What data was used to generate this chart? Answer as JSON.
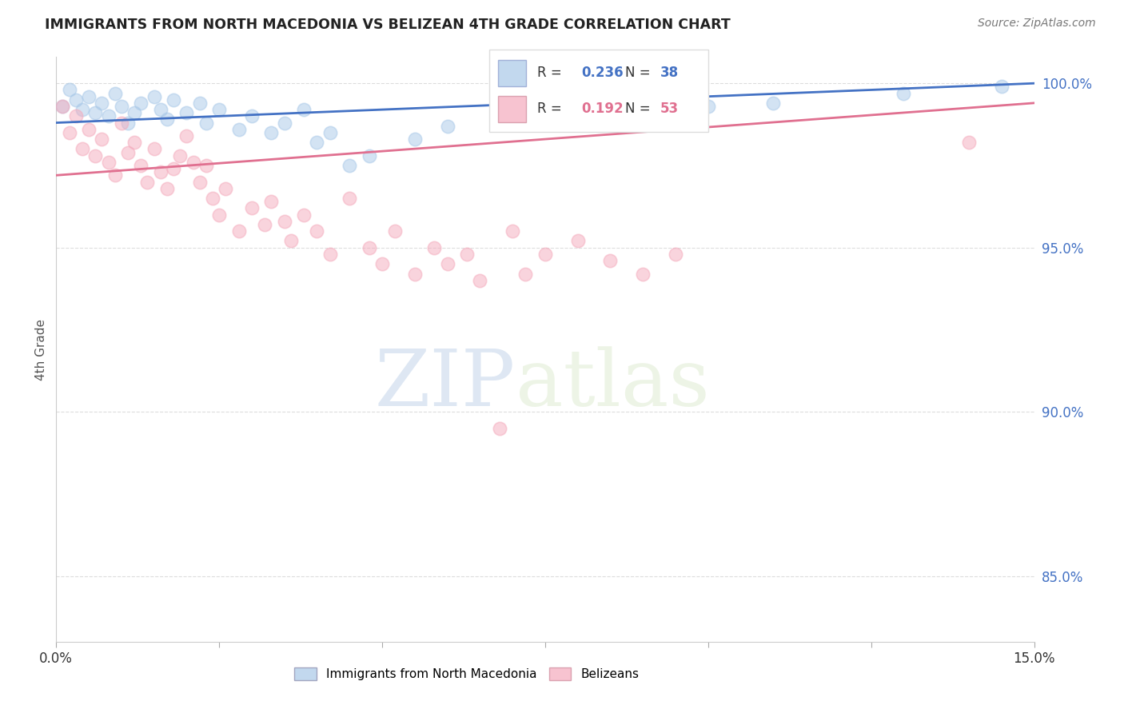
{
  "title": "IMMIGRANTS FROM NORTH MACEDONIA VS BELIZEAN 4TH GRADE CORRELATION CHART",
  "source": "Source: ZipAtlas.com",
  "ylabel": "4th Grade",
  "xlim": [
    0.0,
    0.15
  ],
  "ylim": [
    0.83,
    1.008
  ],
  "yticks": [
    0.85,
    0.9,
    0.95,
    1.0
  ],
  "yticklabels": [
    "85.0%",
    "90.0%",
    "95.0%",
    "100.0%"
  ],
  "blue_color": "#A8C8E8",
  "pink_color": "#F4AABC",
  "blue_line_color": "#4472C4",
  "pink_line_color": "#E07090",
  "r_blue": 0.236,
  "n_blue": 38,
  "r_pink": 0.192,
  "n_pink": 53,
  "blue_dots": [
    [
      0.001,
      0.993
    ],
    [
      0.002,
      0.998
    ],
    [
      0.003,
      0.995
    ],
    [
      0.004,
      0.992
    ],
    [
      0.005,
      0.996
    ],
    [
      0.006,
      0.991
    ],
    [
      0.007,
      0.994
    ],
    [
      0.008,
      0.99
    ],
    [
      0.009,
      0.997
    ],
    [
      0.01,
      0.993
    ],
    [
      0.011,
      0.988
    ],
    [
      0.012,
      0.991
    ],
    [
      0.013,
      0.994
    ],
    [
      0.015,
      0.996
    ],
    [
      0.016,
      0.992
    ],
    [
      0.017,
      0.989
    ],
    [
      0.018,
      0.995
    ],
    [
      0.02,
      0.991
    ],
    [
      0.022,
      0.994
    ],
    [
      0.023,
      0.988
    ],
    [
      0.025,
      0.992
    ],
    [
      0.028,
      0.986
    ],
    [
      0.03,
      0.99
    ],
    [
      0.033,
      0.985
    ],
    [
      0.035,
      0.988
    ],
    [
      0.038,
      0.992
    ],
    [
      0.04,
      0.982
    ],
    [
      0.042,
      0.985
    ],
    [
      0.045,
      0.975
    ],
    [
      0.048,
      0.978
    ],
    [
      0.055,
      0.983
    ],
    [
      0.06,
      0.987
    ],
    [
      0.07,
      0.992
    ],
    [
      0.085,
      0.99
    ],
    [
      0.1,
      0.993
    ],
    [
      0.11,
      0.994
    ],
    [
      0.13,
      0.997
    ],
    [
      0.145,
      0.999
    ]
  ],
  "pink_dots": [
    [
      0.001,
      0.993
    ],
    [
      0.002,
      0.985
    ],
    [
      0.003,
      0.99
    ],
    [
      0.004,
      0.98
    ],
    [
      0.005,
      0.986
    ],
    [
      0.006,
      0.978
    ],
    [
      0.007,
      0.983
    ],
    [
      0.008,
      0.976
    ],
    [
      0.009,
      0.972
    ],
    [
      0.01,
      0.988
    ],
    [
      0.011,
      0.979
    ],
    [
      0.012,
      0.982
    ],
    [
      0.013,
      0.975
    ],
    [
      0.014,
      0.97
    ],
    [
      0.015,
      0.98
    ],
    [
      0.016,
      0.973
    ],
    [
      0.017,
      0.968
    ],
    [
      0.018,
      0.974
    ],
    [
      0.019,
      0.978
    ],
    [
      0.02,
      0.984
    ],
    [
      0.021,
      0.976
    ],
    [
      0.022,
      0.97
    ],
    [
      0.023,
      0.975
    ],
    [
      0.024,
      0.965
    ],
    [
      0.025,
      0.96
    ],
    [
      0.026,
      0.968
    ],
    [
      0.028,
      0.955
    ],
    [
      0.03,
      0.962
    ],
    [
      0.032,
      0.957
    ],
    [
      0.033,
      0.964
    ],
    [
      0.035,
      0.958
    ],
    [
      0.036,
      0.952
    ],
    [
      0.038,
      0.96
    ],
    [
      0.04,
      0.955
    ],
    [
      0.042,
      0.948
    ],
    [
      0.045,
      0.965
    ],
    [
      0.048,
      0.95
    ],
    [
      0.05,
      0.945
    ],
    [
      0.052,
      0.955
    ],
    [
      0.055,
      0.942
    ],
    [
      0.058,
      0.95
    ],
    [
      0.06,
      0.945
    ],
    [
      0.063,
      0.948
    ],
    [
      0.065,
      0.94
    ],
    [
      0.068,
      0.895
    ],
    [
      0.07,
      0.955
    ],
    [
      0.072,
      0.942
    ],
    [
      0.075,
      0.948
    ],
    [
      0.08,
      0.952
    ],
    [
      0.085,
      0.946
    ],
    [
      0.09,
      0.942
    ],
    [
      0.095,
      0.948
    ],
    [
      0.14,
      0.982
    ]
  ],
  "watermark_zip": "ZIP",
  "watermark_atlas": "atlas",
  "grid_color": "#DDDDDD",
  "background_color": "#FFFFFF",
  "legend_box_border": "#DDDDDD"
}
